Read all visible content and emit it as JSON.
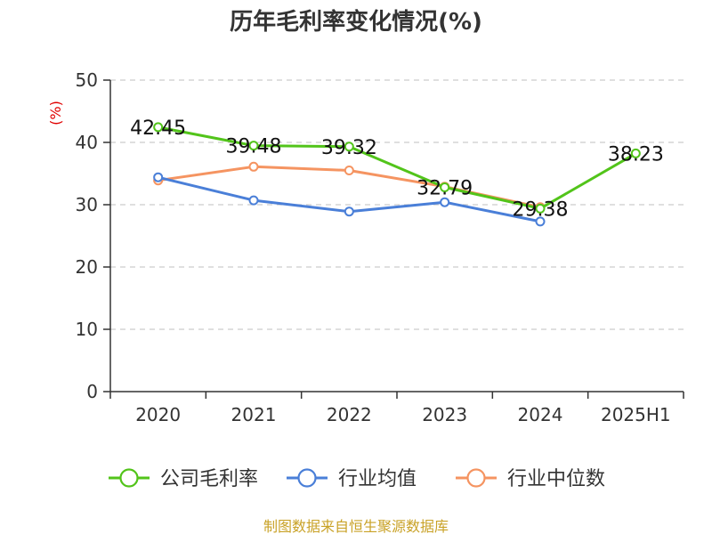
{
  "chart_data": {
    "type": "line",
    "title": "历年毛利率变化情况(%)",
    "ylabel": "(%)",
    "xlabel": "",
    "categories": [
      "2020",
      "2021",
      "2022",
      "2023",
      "2024",
      "2025H1"
    ],
    "ylim": [
      0,
      50
    ],
    "yticks": [
      0,
      10,
      20,
      30,
      40,
      50
    ],
    "grid": true,
    "legend_position": "bottom",
    "series": [
      {
        "name": "公司毛利率",
        "color": "#52c41a",
        "values": [
          42.45,
          39.48,
          39.32,
          32.79,
          29.38,
          38.23
        ],
        "labels": [
          "42.45",
          "39.48",
          "39.32",
          "32.79",
          "29.38",
          "38.23"
        ]
      },
      {
        "name": "行业均值",
        "color": "#4a7fd8",
        "values": [
          34.4,
          30.7,
          28.9,
          30.4,
          27.3,
          null
        ]
      },
      {
        "name": "行业中位数",
        "color": "#f59461",
        "values": [
          33.9,
          36.1,
          35.5,
          32.9,
          29.6,
          null
        ]
      }
    ]
  },
  "source": "制图数据来自恒生聚源数据库",
  "colors": {
    "axis": "#333333",
    "grid": "#cccccc",
    "ylabel": "#e00000",
    "source": "#c9a227"
  }
}
